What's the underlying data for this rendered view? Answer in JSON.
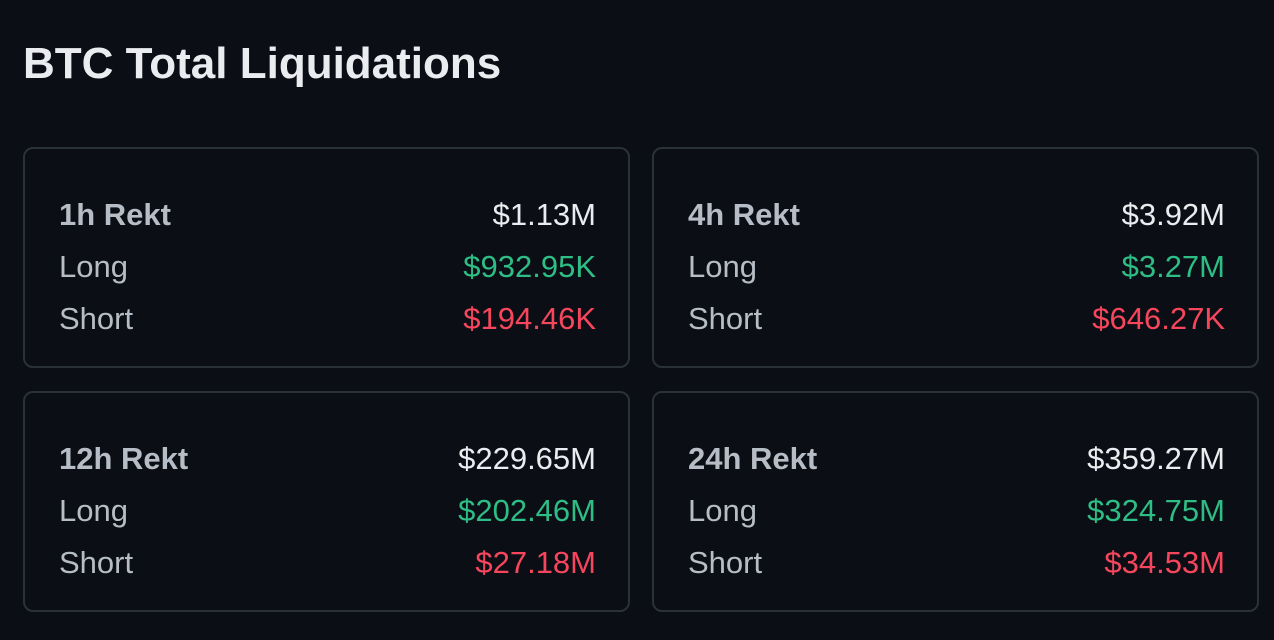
{
  "title": "BTC Total Liquidations",
  "colors": {
    "background": "#0b0e14",
    "card_border": "#2b3139",
    "text_primary": "#eaecef",
    "text_secondary": "#b7bdc6",
    "long": "#2ebd85",
    "short": "#f6465d"
  },
  "cards": [
    {
      "period_label": "1h Rekt",
      "total": "$1.13M",
      "long_label": "Long",
      "long_value": "$932.95K",
      "short_label": "Short",
      "short_value": "$194.46K"
    },
    {
      "period_label": "4h Rekt",
      "total": "$3.92M",
      "long_label": "Long",
      "long_value": "$3.27M",
      "short_label": "Short",
      "short_value": "$646.27K"
    },
    {
      "period_label": "12h Rekt",
      "total": "$229.65M",
      "long_label": "Long",
      "long_value": "$202.46M",
      "short_label": "Short",
      "short_value": "$27.18M"
    },
    {
      "period_label": "24h Rekt",
      "total": "$359.27M",
      "long_label": "Long",
      "long_value": "$324.75M",
      "short_label": "Short",
      "short_value": "$34.53M"
    }
  ]
}
